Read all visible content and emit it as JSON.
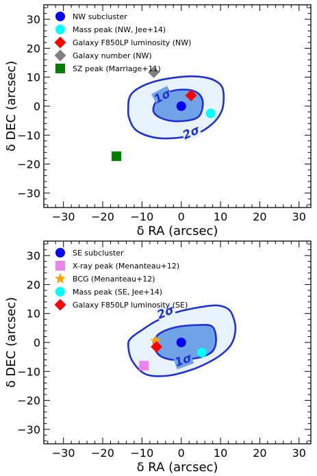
{
  "colors": {
    "contour_line": "#1d2fd6",
    "contour_inner_fill": "#6fa3e6",
    "contour_outer_fill": "#e8f2fb"
  },
  "chart_data": [
    {
      "type": "scatter",
      "panel": "top",
      "xlabel": "δ RA (arcsec)",
      "ylabel": "δ DEC (arcsec)",
      "xlim": [
        -35,
        33
      ],
      "ylim": [
        -35,
        35
      ],
      "xticks": [
        -30,
        -20,
        -10,
        0,
        10,
        20,
        30
      ],
      "yticks": [
        -30,
        -20,
        -10,
        0,
        10,
        20,
        30
      ],
      "x_tick_labels": [
        "−30",
        "−20",
        "−10",
        "0",
        "10",
        "20",
        "30"
      ],
      "y_tick_labels": [
        "−30",
        "−20",
        "−10",
        "0",
        "10",
        "20",
        "30"
      ],
      "grid": false,
      "legend_position": "top-left",
      "contours": [
        {
          "label": "1σ",
          "label_x": -4.8,
          "label_y": 3.5,
          "label_rotation": -28,
          "points": [
            [
              -7.0,
              0.0
            ],
            [
              -5.0,
              3.5
            ],
            [
              -1.5,
              5.5
            ],
            [
              2.5,
              5.5
            ],
            [
              4.8,
              3.8
            ],
            [
              5.5,
              0.5
            ],
            [
              4.5,
              -3.5
            ],
            [
              1.5,
              -5.0
            ],
            [
              -3.0,
              -5.0
            ],
            [
              -6.5,
              -3.0
            ]
          ]
        },
        {
          "label": "2σ",
          "label_x": 2.5,
          "label_y": -9.0,
          "label_rotation": -24,
          "points": [
            [
              -13.5,
              -0.5
            ],
            [
              -13.3,
              2.5
            ],
            [
              -12.3,
              4.8
            ],
            [
              -9.8,
              7.0
            ],
            [
              -6.3,
              8.7
            ],
            [
              -2.0,
              9.8
            ],
            [
              2.5,
              10.3
            ],
            [
              6.5,
              9.8
            ],
            [
              9.0,
              8.5
            ],
            [
              10.5,
              6.3
            ],
            [
              10.8,
              2.0
            ],
            [
              10.2,
              -2.0
            ],
            [
              8.0,
              -6.0
            ],
            [
              4.0,
              -9.5
            ],
            [
              -1.5,
              -11.0
            ],
            [
              -7.0,
              -10.8
            ],
            [
              -11.5,
              -8.3
            ],
            [
              -13.3,
              -4.0
            ]
          ]
        }
      ],
      "series": [
        {
          "name": "NW subcluster",
          "marker": "circle",
          "color": "#0000ff",
          "x": [
            0.0
          ],
          "y": [
            0.0
          ]
        },
        {
          "name": "Mass peak (NW, Jee+14)",
          "marker": "circle",
          "color": "#00ffff",
          "x": [
            7.5
          ],
          "y": [
            -2.5
          ]
        },
        {
          "name": "Galaxy F850LP luminosity (NW)",
          "marker": "diamond",
          "color": "#ff0000",
          "x": [
            2.5
          ],
          "y": [
            3.7
          ]
        },
        {
          "name": "Galaxy number (NW)",
          "marker": "diamond",
          "color": "#808080",
          "x": [
            -7.0
          ],
          "y": [
            11.7
          ]
        },
        {
          "name": "SZ peak (Marriage+11)",
          "marker": "square",
          "color": "#008000",
          "x": [
            -16.5
          ],
          "y": [
            -17.3
          ]
        }
      ]
    },
    {
      "type": "scatter",
      "panel": "bottom",
      "xlabel": "δ RA (arcsec)",
      "ylabel": "δ DEC (arcsec)",
      "xlim": [
        -35,
        33
      ],
      "ylim": [
        -35,
        35
      ],
      "xticks": [
        -30,
        -20,
        -10,
        0,
        10,
        20,
        30
      ],
      "yticks": [
        -30,
        -20,
        -10,
        0,
        10,
        20,
        30
      ],
      "x_tick_labels": [
        "−30",
        "−20",
        "−10",
        "0",
        "10",
        "20",
        "30"
      ],
      "y_tick_labels": [
        "−30",
        "−20",
        "−10",
        "0",
        "10",
        "20",
        "30"
      ],
      "grid": false,
      "legend_position": "top-left",
      "contours": [
        {
          "label": "1σ",
          "label_x": 0.5,
          "label_y": -6.0,
          "label_rotation": -20,
          "points": [
            [
              -7.0,
              -1.0
            ],
            [
              -6.5,
              1.8
            ],
            [
              -4.3,
              4.0
            ],
            [
              -0.5,
              5.5
            ],
            [
              4.0,
              6.0
            ],
            [
              7.5,
              5.8
            ],
            [
              8.7,
              3.2
            ],
            [
              8.7,
              -1.0
            ],
            [
              7.3,
              -3.8
            ],
            [
              3.5,
              -5.5
            ],
            [
              -2.0,
              -6.0
            ],
            [
              -5.5,
              -4.5
            ]
          ]
        },
        {
          "label": "2σ",
          "label_x": -4.0,
          "label_y": 10.5,
          "label_rotation": -22,
          "points": [
            [
              -13.5,
              -1.0
            ],
            [
              -12.8,
              1.5
            ],
            [
              -10.0,
              4.3
            ],
            [
              -6.5,
              7.3
            ],
            [
              -1.5,
              10.3
            ],
            [
              4.0,
              12.0
            ],
            [
              9.0,
              12.8
            ],
            [
              12.0,
              11.5
            ],
            [
              13.3,
              8.5
            ],
            [
              13.8,
              4.5
            ],
            [
              13.0,
              0.0
            ],
            [
              11.0,
              -3.3
            ],
            [
              7.5,
              -6.5
            ],
            [
              2.5,
              -9.5
            ],
            [
              -3.5,
              -11.5
            ],
            [
              -9.0,
              -11.0
            ],
            [
              -12.5,
              -6.3
            ]
          ]
        }
      ],
      "series": [
        {
          "name": "SE subcluster",
          "marker": "circle",
          "color": "#0000ff",
          "x": [
            0.0
          ],
          "y": [
            0.0
          ]
        },
        {
          "name": "X-ray peak (Menanteau+12)",
          "marker": "square",
          "color": "#ee82ee",
          "x": [
            -9.5
          ],
          "y": [
            -8.0
          ]
        },
        {
          "name": "BCG (Menanteau+12)",
          "marker": "star",
          "color": "#ffa500",
          "x": [
            -6.5
          ],
          "y": [
            0.5
          ]
        },
        {
          "name": "Mass peak (SE, Jee+14)",
          "marker": "circle",
          "color": "#00ffff",
          "x": [
            5.3
          ],
          "y": [
            -3.5
          ]
        },
        {
          "name": "Galaxy F850LP luminosity (SE)",
          "marker": "diamond",
          "color": "#ff0000",
          "x": [
            -6.3
          ],
          "y": [
            -1.5
          ]
        }
      ]
    }
  ]
}
